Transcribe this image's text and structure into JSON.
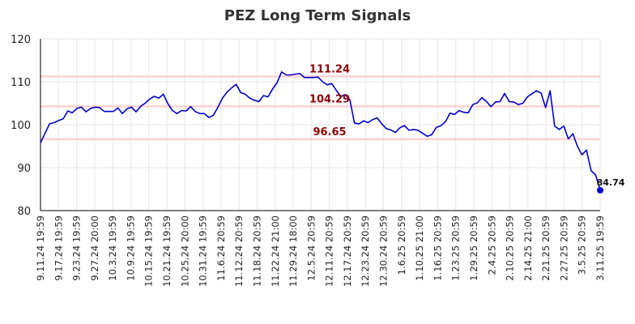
{
  "chart_data": {
    "type": "line",
    "title": "PEZ Long Term Signals",
    "xlabel": "",
    "ylabel": "",
    "ylim": [
      80,
      120
    ],
    "yticks": [
      80,
      90,
      100,
      110,
      120
    ],
    "grid": true,
    "legend": "none",
    "x_tick_labels": [
      "9.11.24 19:59",
      "9.17.24 19:59",
      "9.23.24 19:59",
      "9.27.24 20:00",
      "10.3.24 19:59",
      "10.9.24 19:59",
      "10.15.24 19:59",
      "10.21.24 19:59",
      "10.25.24 20:00",
      "10.31.24 19:59",
      "11.6.24 20:59",
      "11.12.24 20:59",
      "11.18.24 20:59",
      "11.22.24 21:00",
      "11.29.24 18:00",
      "12.5.24 20:59",
      "12.11.24 20:59",
      "12.17.24 20:59",
      "12.23.24 20:59",
      "12.30.24 20:59",
      "1.6.25 20:59",
      "1.10.25 21:00",
      "1.16.25 20:59",
      "1.23.25 20:59",
      "1.29.25 20:59",
      "2.4.25 20:59",
      "2.10.25 20:59",
      "2.14.25 21:00",
      "2.21.25 20:59",
      "2.27.25 20:59",
      "3.5.25 20:59",
      "3.11.25 19:59"
    ],
    "reference_lines": [
      {
        "value": 111.24,
        "label": "111.24"
      },
      {
        "value": 104.29,
        "label": "104.29"
      },
      {
        "value": 96.65,
        "label": "96.65"
      }
    ],
    "series": [
      {
        "values": [
          95.8,
          98.0,
          100.2,
          100.5,
          101.0,
          101.4,
          103.2,
          102.8,
          103.8,
          104.1,
          103.0,
          103.8,
          104.1,
          104.0,
          103.1,
          103.1,
          103.1,
          103.9,
          102.6,
          103.7,
          104.1,
          103.0,
          104.3,
          105.0,
          106.0,
          106.6,
          106.2,
          107.1,
          104.9,
          103.3,
          102.6,
          103.3,
          103.2,
          104.2,
          103.1,
          102.6,
          102.6,
          101.7,
          102.2,
          104.1,
          106.2,
          107.6,
          108.6,
          109.4,
          107.5,
          107.1,
          106.2,
          105.7,
          105.4,
          106.8,
          106.5,
          108.3,
          109.8,
          112.3,
          111.6,
          111.6,
          111.8,
          111.9,
          111.0,
          111.0,
          111.0,
          111.1,
          110.0,
          109.3,
          109.6,
          108.0,
          106.6,
          107.0,
          105.8,
          100.4,
          100.2,
          100.9,
          100.5,
          101.2,
          101.6,
          100.2,
          99.1,
          98.8,
          98.2,
          99.3,
          99.8,
          98.7,
          98.9,
          98.7,
          98.0,
          97.3,
          97.7,
          99.4,
          99.8,
          100.7,
          102.7,
          102.4,
          103.3,
          102.9,
          102.8,
          104.7,
          105.1,
          106.3,
          105.4,
          104.2,
          105.3,
          105.4,
          107.3,
          105.4,
          105.3,
          104.7,
          105.0,
          106.5,
          107.2,
          107.9,
          107.4,
          104.0,
          107.9,
          99.7,
          98.9,
          99.7,
          96.7,
          97.9,
          95.0,
          93.0,
          94.1,
          89.3,
          88.3,
          84.74
        ]
      }
    ],
    "last_value_label": "84.74",
    "colors": {
      "line": "#0000cc",
      "reference": "#ffc8c8",
      "reference_label": "#8b0000",
      "grid": "#e6e6e6",
      "axis": "#000000"
    }
  }
}
